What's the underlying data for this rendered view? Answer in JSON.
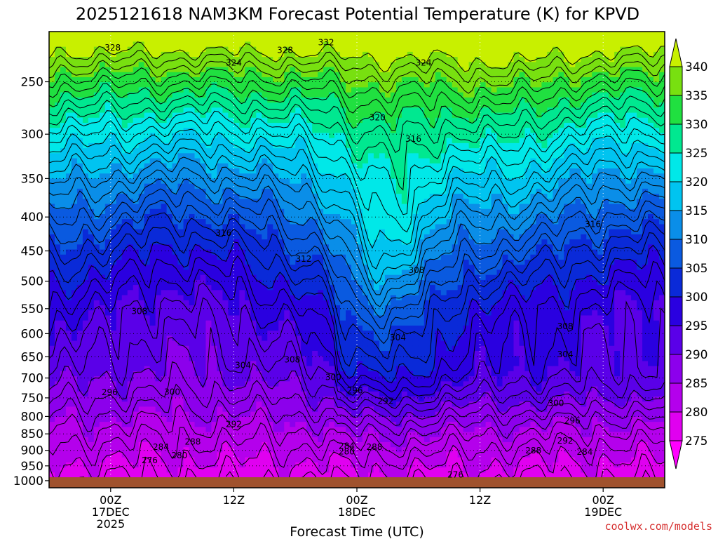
{
  "chart_data": {
    "type": "heatmap",
    "title": "2025121618 NAM3KM Forecast Potential Temperature (K) for KPVD",
    "xlabel": "Forecast Time (UTC)",
    "ylabel": "",
    "x_ticks": [
      {
        "hours": 6,
        "lines": [
          "00Z",
          "17DEC",
          "2025"
        ]
      },
      {
        "hours": 18,
        "lines": [
          "12Z"
        ]
      },
      {
        "hours": 30,
        "lines": [
          "00Z",
          "18DEC"
        ]
      },
      {
        "hours": 42,
        "lines": [
          "12Z"
        ]
      },
      {
        "hours": 54,
        "lines": [
          "00Z",
          "19DEC"
        ]
      }
    ],
    "xlim": [
      0,
      60
    ],
    "y_ticks": [
      250,
      300,
      350,
      400,
      450,
      500,
      550,
      600,
      650,
      700,
      750,
      800,
      850,
      900,
      950,
      1000
    ],
    "y_tick_labels": [
      "250",
      "300",
      "350",
      "400",
      "450",
      "500",
      "550",
      "600",
      "650",
      "700",
      "750",
      "800",
      "850",
      "900",
      "950",
      "1000"
    ],
    "ylim": [
      1025,
      210
    ],
    "colorbar": {
      "levels": [
        275,
        280,
        285,
        290,
        295,
        300,
        305,
        310,
        315,
        320,
        325,
        330,
        335,
        340
      ],
      "labels": [
        "275",
        "280",
        "285",
        "290",
        "295",
        "300",
        "305",
        "310",
        "315",
        "320",
        "325",
        "330",
        "335",
        "340"
      ],
      "colors": [
        "#ff00ff",
        "#e000f0",
        "#b400ec",
        "#8c00ec",
        "#5a00e8",
        "#2a00e0",
        "#0a2ad8",
        "#0a5ae0",
        "#0a8ee8",
        "#00c4f0",
        "#00e8e8",
        "#00e890",
        "#20e040",
        "#78e010",
        "#c8f000"
      ]
    },
    "contour_labels": [
      {
        "text": "328",
        "hours": 6.2,
        "pressure": 222
      },
      {
        "text": "328",
        "hours": 23.0,
        "pressure": 224
      },
      {
        "text": "332",
        "hours": 27.0,
        "pressure": 218
      },
      {
        "text": "324",
        "hours": 18.0,
        "pressure": 234
      },
      {
        "text": "324",
        "hours": 36.5,
        "pressure": 234
      },
      {
        "text": "320",
        "hours": 32.0,
        "pressure": 283
      },
      {
        "text": "316",
        "hours": 35.5,
        "pressure": 305
      },
      {
        "text": "316",
        "hours": 17.0,
        "pressure": 423
      },
      {
        "text": "316",
        "hours": 53.0,
        "pressure": 410
      },
      {
        "text": "312",
        "hours": 24.8,
        "pressure": 463
      },
      {
        "text": "308",
        "hours": 35.8,
        "pressure": 481
      },
      {
        "text": "308",
        "hours": 8.8,
        "pressure": 555
      },
      {
        "text": "308",
        "hours": 23.7,
        "pressure": 657
      },
      {
        "text": "308",
        "hours": 50.3,
        "pressure": 585
      },
      {
        "text": "304",
        "hours": 34.0,
        "pressure": 608
      },
      {
        "text": "304",
        "hours": 18.9,
        "pressure": 670
      },
      {
        "text": "304",
        "hours": 50.3,
        "pressure": 645
      },
      {
        "text": "300",
        "hours": 27.7,
        "pressure": 698
      },
      {
        "text": "300",
        "hours": 12.0,
        "pressure": 735
      },
      {
        "text": "300",
        "hours": 49.4,
        "pressure": 764
      },
      {
        "text": "296",
        "hours": 29.8,
        "pressure": 731
      },
      {
        "text": "296",
        "hours": 5.9,
        "pressure": 736
      },
      {
        "text": "296",
        "hours": 51.0,
        "pressure": 812
      },
      {
        "text": "292",
        "hours": 32.8,
        "pressure": 758
      },
      {
        "text": "292",
        "hours": 18.0,
        "pressure": 822
      },
      {
        "text": "292",
        "hours": 50.3,
        "pressure": 870
      },
      {
        "text": "288",
        "hours": 14.0,
        "pressure": 874
      },
      {
        "text": "288",
        "hours": 31.7,
        "pressure": 890
      },
      {
        "text": "288",
        "hours": 47.2,
        "pressure": 901
      },
      {
        "text": "284",
        "hours": 10.9,
        "pressure": 890
      },
      {
        "text": "284",
        "hours": 29.0,
        "pressure": 887
      },
      {
        "text": "284",
        "hours": 52.2,
        "pressure": 905
      },
      {
        "text": "280",
        "hours": 12.7,
        "pressure": 916
      },
      {
        "text": "280",
        "hours": 29.0,
        "pressure": 904
      },
      {
        "text": "276",
        "hours": 9.8,
        "pressure": 932
      },
      {
        "text": "276",
        "hours": 39.6,
        "pressure": 980
      }
    ]
  },
  "credit": "coolwx.com/models"
}
